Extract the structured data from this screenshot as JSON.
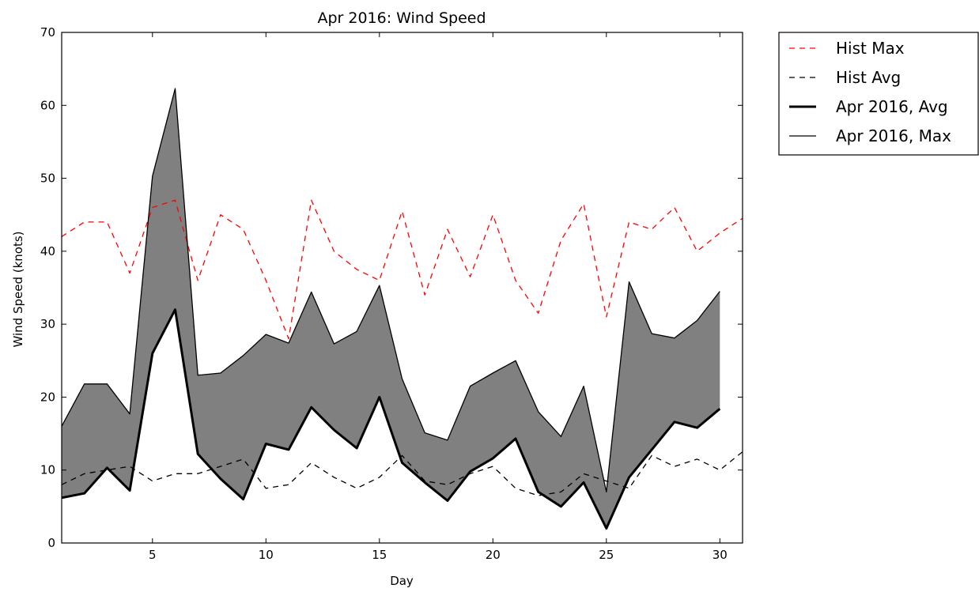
{
  "chart_data": {
    "type": "line",
    "title": "Apr 2016: Wind Speed",
    "xlabel": "Day",
    "ylabel": "Wind Speed (knots)",
    "xlim": [
      1,
      31
    ],
    "ylim": [
      0,
      70
    ],
    "xticks": [
      5,
      10,
      15,
      20,
      25,
      30
    ],
    "yticks": [
      0,
      10,
      20,
      30,
      40,
      50,
      60,
      70
    ],
    "grid": false,
    "legend_position": "outside-top-right",
    "fill_between": {
      "lower": "Apr 2016, Avg",
      "upper": "Apr 2016, Max",
      "color": "#808080"
    },
    "series": [
      {
        "name": "Hist Max",
        "style": "dashed",
        "color": "#ff0000",
        "x": [
          1,
          2,
          3,
          4,
          5,
          6,
          7,
          8,
          9,
          10,
          11,
          12,
          13,
          14,
          15,
          16,
          17,
          18,
          19,
          20,
          21,
          22,
          23,
          24,
          25,
          26,
          27,
          28,
          29,
          30,
          31
        ],
        "values": [
          42,
          44,
          44,
          37,
          46,
          47,
          36,
          45,
          43,
          36,
          28,
          47,
          40,
          37.5,
          36,
          45.5,
          34,
          43,
          36.5,
          45,
          36,
          31.5,
          41.5,
          46.5,
          31,
          44,
          43,
          46,
          40,
          42.5,
          44.5
        ]
      },
      {
        "name": "Hist Avg",
        "style": "dashed",
        "color": "#000000",
        "x": [
          1,
          2,
          3,
          4,
          5,
          6,
          7,
          8,
          9,
          10,
          11,
          12,
          13,
          14,
          15,
          16,
          17,
          18,
          19,
          20,
          21,
          22,
          23,
          24,
          25,
          26,
          27,
          28,
          29,
          30,
          31
        ],
        "values": [
          8,
          9.5,
          10,
          10.5,
          8.5,
          9.5,
          9.5,
          10.5,
          11.5,
          7.5,
          8,
          11,
          9,
          7.5,
          9,
          12,
          8.5,
          8,
          9.5,
          10.5,
          7.5,
          6.5,
          7,
          9.5,
          8.5,
          7.5,
          12,
          10.5,
          11.5,
          10,
          12.5
        ]
      },
      {
        "name": "Apr 2016, Avg",
        "style": "solid-thick",
        "color": "#000000",
        "x": [
          1,
          2,
          3,
          4,
          5,
          6,
          7,
          8,
          9,
          10,
          11,
          12,
          13,
          14,
          15,
          16,
          17,
          18,
          19,
          20,
          21,
          22,
          23,
          24,
          25,
          26,
          27,
          28,
          29,
          30
        ],
        "values": [
          6.2,
          6.8,
          10.3,
          7.2,
          26,
          32,
          12.2,
          8.8,
          6,
          13.6,
          12.8,
          18.6,
          15.5,
          13,
          20,
          11,
          8.3,
          5.8,
          9.8,
          11.6,
          14.3,
          7,
          5,
          8.3,
          2,
          9,
          12.8,
          16.6,
          15.8,
          18.4
        ]
      },
      {
        "name": "Apr 2016, Max",
        "style": "solid",
        "color": "#000000",
        "x": [
          1,
          2,
          3,
          4,
          5,
          6,
          7,
          8,
          9,
          10,
          11,
          12,
          13,
          14,
          15,
          16,
          17,
          18,
          19,
          20,
          21,
          22,
          23,
          24,
          25,
          26,
          27,
          28,
          29,
          30
        ],
        "values": [
          16,
          21.8,
          21.8,
          17.7,
          50.3,
          62.3,
          23,
          23.3,
          25.7,
          28.6,
          27.4,
          34.4,
          27.3,
          29,
          35.3,
          22.5,
          15.1,
          14.1,
          21.5,
          23.3,
          25,
          18,
          14.6,
          21.5,
          7,
          35.8,
          28.7,
          28.1,
          30.5,
          34.5
        ]
      }
    ]
  }
}
